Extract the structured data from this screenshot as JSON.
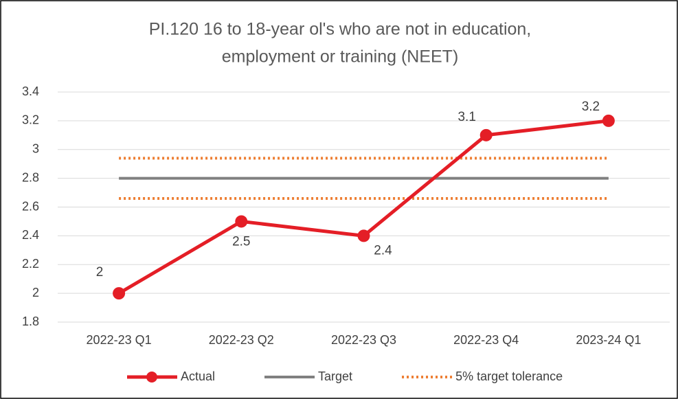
{
  "chart_data": {
    "type": "line",
    "title": [
      "PI.120 16 to 18-year ol's who are not in education,",
      "employment or training (NEET)"
    ],
    "categories": [
      "2022-23 Q1",
      "2022-23 Q2",
      "2022-23 Q3",
      "2022-23 Q4",
      "2023-24 Q1"
    ],
    "series": [
      {
        "name": "Actual",
        "color": "#e41e26",
        "values": [
          2,
          2.5,
          2.4,
          3.1,
          3.2
        ],
        "markers": true,
        "data_labels": true
      },
      {
        "name": "Target",
        "color": "#808080",
        "values": [
          2.8,
          2.8,
          2.8,
          2.8,
          2.8
        ]
      },
      {
        "name": "5% target tolerance",
        "color": "#ed7d31",
        "values": [
          2.94,
          2.94,
          2.94,
          2.94,
          2.94
        ],
        "dash": "dotted"
      },
      {
        "color": "#ed7d31",
        "values": [
          2.66,
          2.66,
          2.66,
          2.66,
          2.66
        ],
        "dash": "dotted"
      }
    ],
    "ylim": [
      1.8,
      3.4
    ],
    "yticks": [
      1.8,
      2,
      2.2,
      2.4,
      2.6,
      2.8,
      3,
      3.2,
      3.4
    ],
    "grid": true,
    "legend": "bottom"
  }
}
